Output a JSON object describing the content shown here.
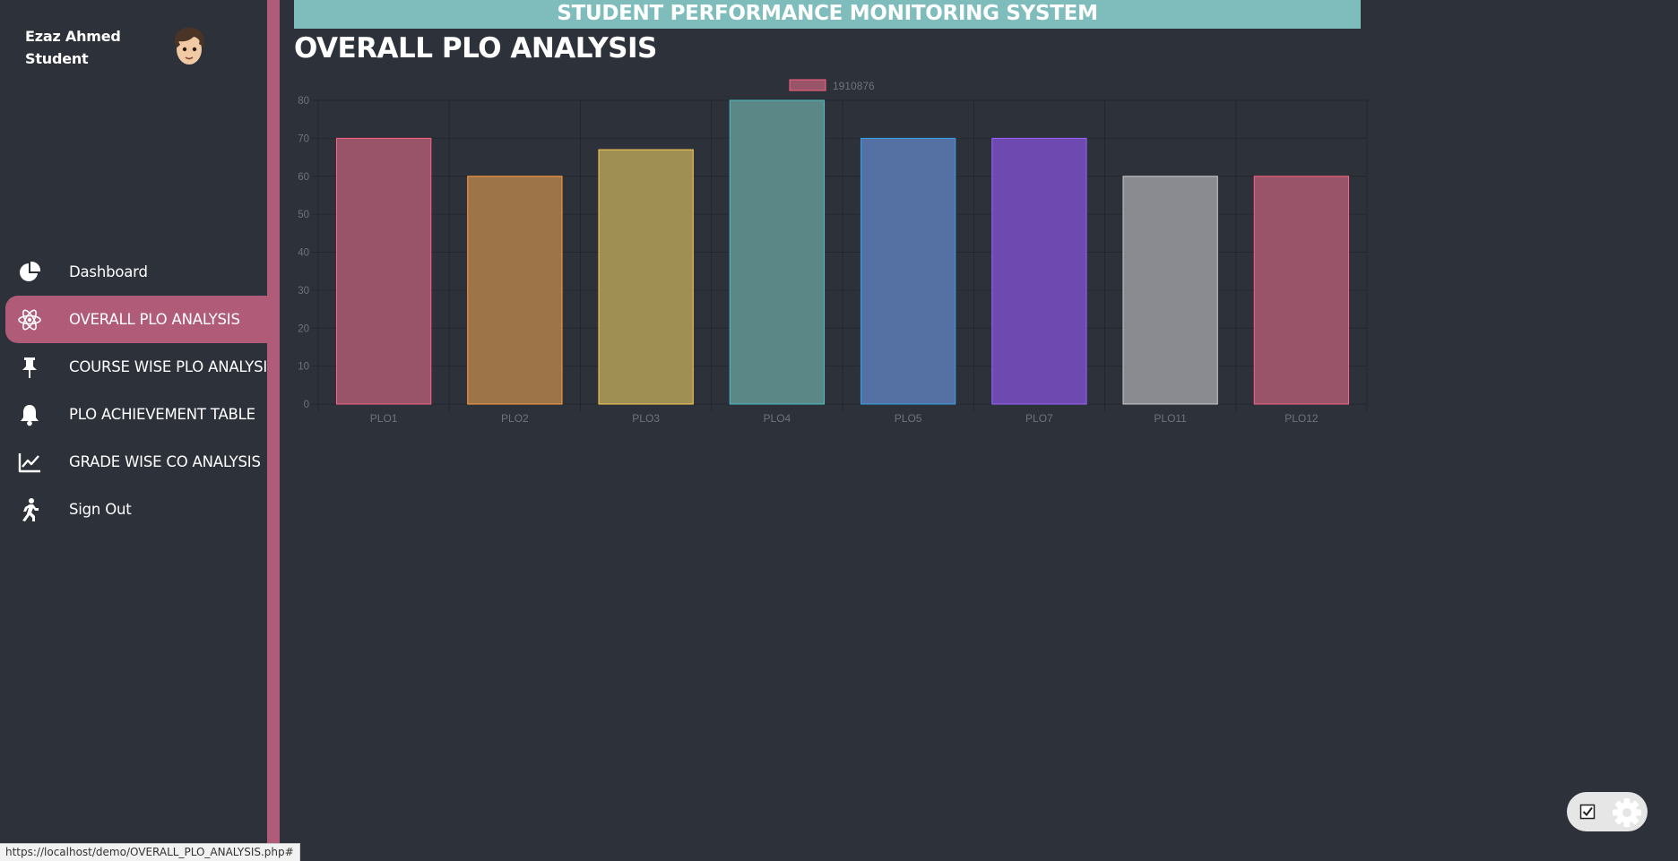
{
  "user": {
    "name": "Ezaz Ahmed",
    "role": "Student"
  },
  "nav": {
    "items": [
      {
        "label": "Dashboard",
        "icon": "pie-chart-icon"
      },
      {
        "label": "OVERALL PLO ANALYSIS",
        "icon": "atom-icon",
        "active": true
      },
      {
        "label": "COURSE WISE PLO ANALYSIS",
        "icon": "pin-icon"
      },
      {
        "label": "PLO ACHIEVEMENT TABLE",
        "icon": "bell-icon"
      },
      {
        "label": "GRADE WISE CO ANALYSIS",
        "icon": "line-chart-icon"
      },
      {
        "label": "Sign Out",
        "icon": "running-person-icon"
      }
    ]
  },
  "header": {
    "banner": "STUDENT PERFORMANCE MONITORING SYSTEM",
    "page_title": "OVERALL PLO ANALYSIS"
  },
  "chart_data": {
    "type": "bar",
    "categories": [
      "PLO1",
      "PLO2",
      "PLO3",
      "PLO4",
      "PLO5",
      "PLO7",
      "PLO11",
      "PLO12"
    ],
    "series": [
      {
        "name": "1910876",
        "values": [
          70,
          60,
          67,
          80,
          70,
          70,
          60,
          60
        ]
      }
    ],
    "ylim": [
      0,
      80
    ],
    "yticks": [
      0,
      10,
      20,
      30,
      40,
      50,
      60,
      70,
      80
    ],
    "grid": true,
    "legend": "top-center",
    "bar_colors": [
      "#9a5469",
      "#9c7447",
      "#a08f52",
      "#5b8787",
      "#5570a3",
      "#6e49b0",
      "#8a8b90",
      "#9a5469"
    ],
    "bar_borders": [
      "#ff6384",
      "#ff9f40",
      "#ffcd56",
      "#4bc0c0",
      "#36a2eb",
      "#9966ff",
      "#c9cbcf",
      "#ff6384"
    ],
    "legend_color": "#9a5469"
  },
  "status_bar": {
    "url": "https://localhost/demo/OVERALL_PLO_ANALYSIS.php#"
  }
}
